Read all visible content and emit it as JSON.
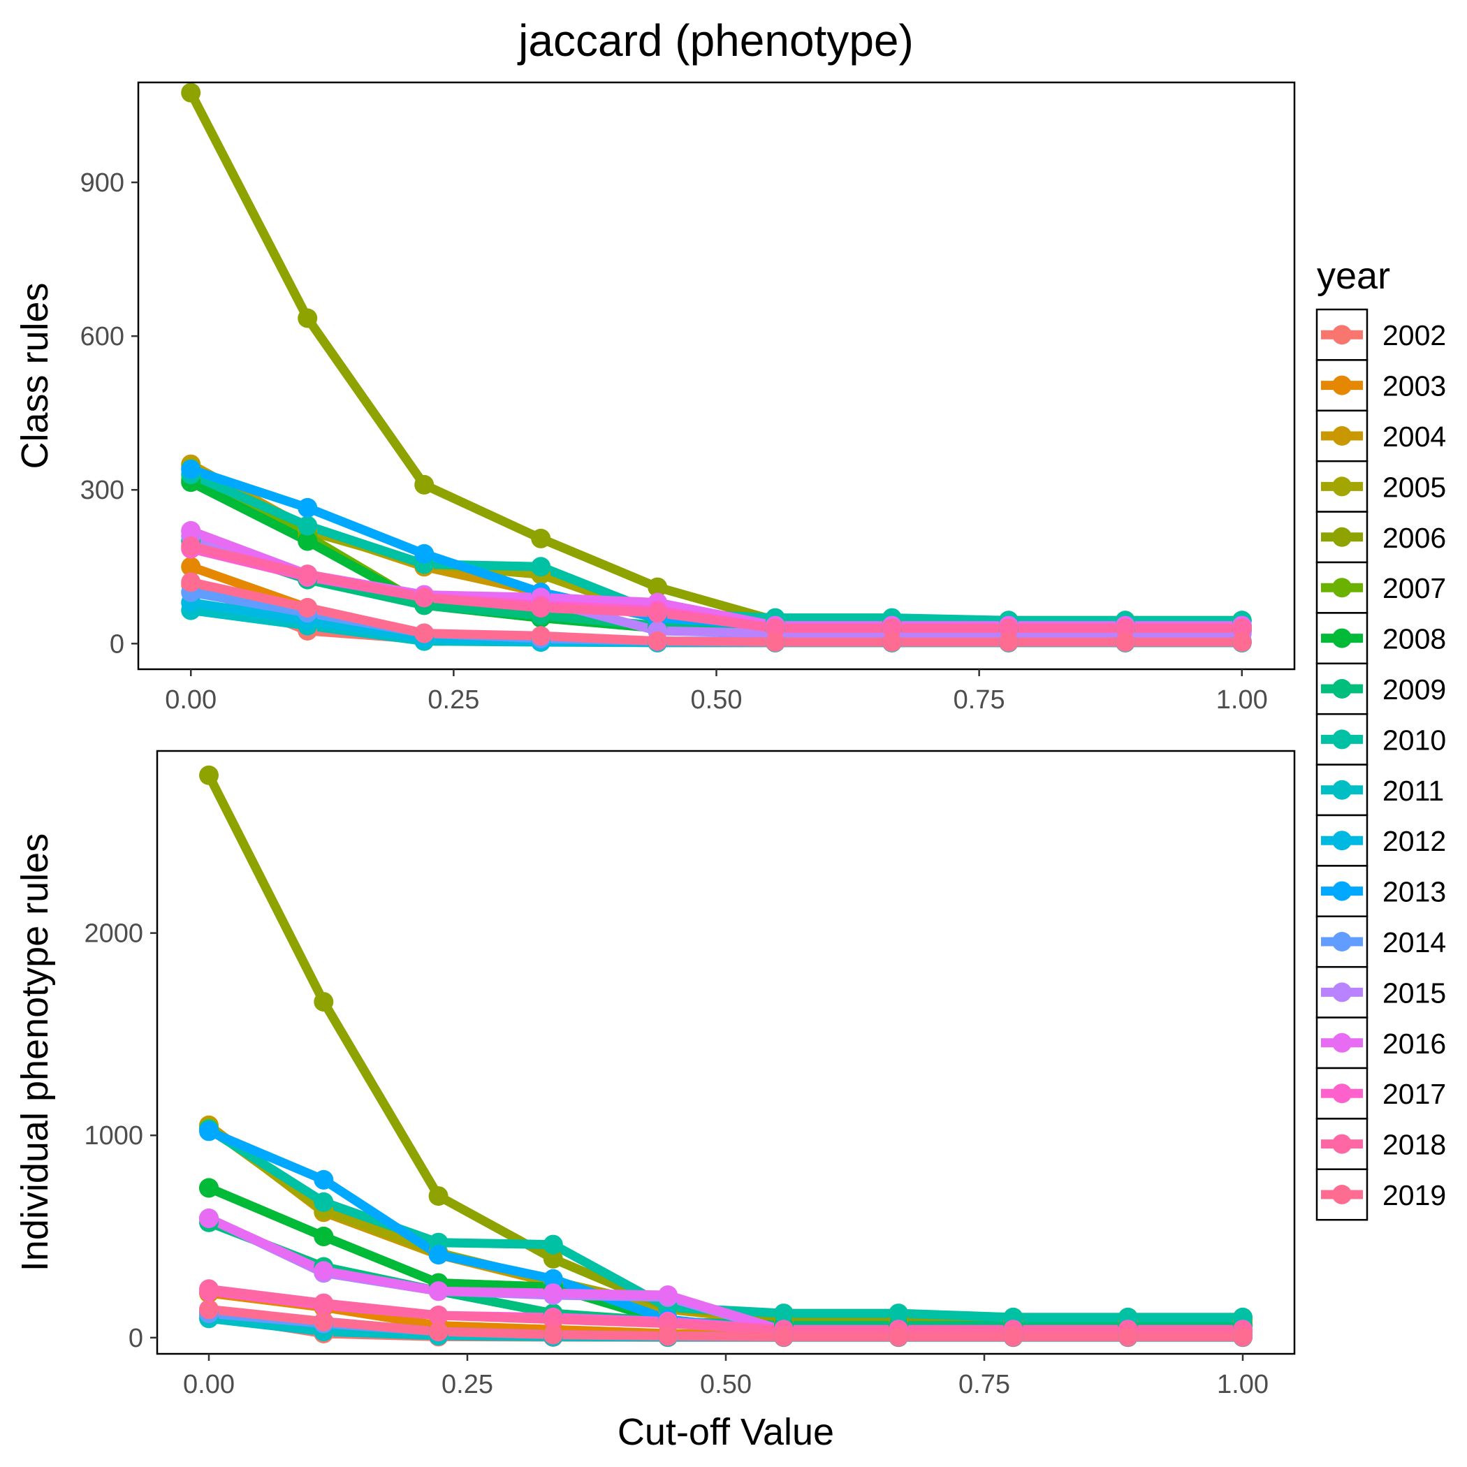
{
  "title": "jaccard (phenotype)",
  "legend": {
    "title": "year",
    "position": "right"
  },
  "colors": {
    "2002": "#F8766D",
    "2003": "#E58700",
    "2004": "#C99800",
    "2005": "#A3A500",
    "2006": "#8FA300",
    "2007": "#6BB100",
    "2008": "#00BA38",
    "2009": "#00BF7D",
    "2010": "#00C1A3",
    "2011": "#00BFC4",
    "2012": "#00B9E3",
    "2013": "#00A9FF",
    "2014": "#619CFF",
    "2015": "#B983FF",
    "2016": "#E76BF3",
    "2017": "#FF61CC",
    "2018": "#FF67A4",
    "2019": "#FF6C91"
  },
  "chart_data": [
    {
      "type": "line",
      "title": "",
      "xlabel": "",
      "ylabel": "Class rules",
      "xlim": [
        -0.05,
        1.05
      ],
      "ylim": [
        -50,
        1095
      ],
      "xticks": [
        0,
        0.25,
        0.5,
        0.75,
        1
      ],
      "xtick_labels": [
        "0.00",
        "0.25",
        "0.50",
        "0.75",
        "1.00"
      ],
      "yticks": [
        0,
        300,
        600,
        900
      ],
      "ytick_labels": [
        "0",
        "300",
        "600",
        "900"
      ],
      "grid": false,
      "x": [
        0,
        0.111,
        0.222,
        0.333,
        0.444,
        0.556,
        0.667,
        0.778,
        0.889,
        1.0
      ],
      "series": [
        {
          "name": "2002",
          "values": [
            115,
            25,
            8,
            5,
            2,
            2,
            2,
            2,
            2,
            2
          ]
        },
        {
          "name": "2003",
          "values": [
            150,
            70,
            20,
            10,
            5,
            3,
            3,
            3,
            3,
            3
          ]
        },
        {
          "name": "2004",
          "values": [
            350,
            225,
            150,
            100,
            50,
            30,
            30,
            30,
            30,
            30
          ]
        },
        {
          "name": "2005",
          "values": [
            345,
            220,
            155,
            135,
            55,
            35,
            35,
            35,
            35,
            35
          ]
        },
        {
          "name": "2006",
          "values": [
            1075,
            635,
            310,
            205,
            110,
            45,
            45,
            45,
            45,
            45
          ]
        },
        {
          "name": "2007",
          "values": [
            320,
            210,
            75,
            55,
            30,
            25,
            25,
            25,
            25,
            25
          ]
        },
        {
          "name": "2008",
          "values": [
            315,
            200,
            75,
            50,
            30,
            25,
            25,
            25,
            25,
            25
          ]
        },
        {
          "name": "2009",
          "values": [
            200,
            125,
            75,
            55,
            35,
            30,
            30,
            30,
            30,
            30
          ]
        },
        {
          "name": "2010",
          "values": [
            330,
            230,
            155,
            150,
            60,
            50,
            50,
            45,
            45,
            45
          ]
        },
        {
          "name": "2011",
          "values": [
            65,
            35,
            5,
            3,
            2,
            2,
            2,
            2,
            2,
            2
          ]
        },
        {
          "name": "2012",
          "values": [
            80,
            45,
            10,
            5,
            3,
            3,
            3,
            3,
            3,
            3
          ]
        },
        {
          "name": "2013",
          "values": [
            340,
            265,
            175,
            100,
            50,
            35,
            35,
            35,
            35,
            35
          ]
        },
        {
          "name": "2014",
          "values": [
            100,
            60,
            20,
            10,
            5,
            5,
            5,
            5,
            5,
            5
          ]
        },
        {
          "name": "2015",
          "values": [
            210,
            135,
            95,
            85,
            25,
            20,
            20,
            20,
            20,
            20
          ]
        },
        {
          "name": "2016",
          "values": [
            220,
            135,
            95,
            90,
            80,
            35,
            35,
            35,
            35,
            35
          ]
        },
        {
          "name": "2017",
          "values": [
            185,
            130,
            90,
            75,
            65,
            30,
            30,
            30,
            30,
            30
          ]
        },
        {
          "name": "2018",
          "values": [
            190,
            135,
            90,
            70,
            60,
            30,
            30,
            30,
            30,
            30
          ]
        },
        {
          "name": "2019",
          "values": [
            120,
            70,
            20,
            15,
            5,
            3,
            3,
            3,
            3,
            3
          ]
        }
      ]
    },
    {
      "type": "line",
      "title": "",
      "xlabel": "Cut-off Value",
      "ylabel": "Individual phenotype rules",
      "xlim": [
        -0.05,
        1.05
      ],
      "ylim": [
        -80,
        2900
      ],
      "xticks": [
        0,
        0.25,
        0.5,
        0.75,
        1
      ],
      "xtick_labels": [
        "0.00",
        "0.25",
        "0.50",
        "0.75",
        "1.00"
      ],
      "yticks": [
        0,
        1000,
        2000
      ],
      "ytick_labels": [
        "0",
        "1000",
        "2000"
      ],
      "grid": false,
      "x": [
        0,
        0.111,
        0.222,
        0.333,
        0.444,
        0.556,
        0.667,
        0.778,
        0.889,
        1.0
      ],
      "series": [
        {
          "name": "2002",
          "values": [
            110,
            20,
            5,
            3,
            2,
            2,
            2,
            2,
            2,
            2
          ]
        },
        {
          "name": "2003",
          "values": [
            220,
            150,
            60,
            40,
            20,
            10,
            10,
            10,
            10,
            10
          ]
        },
        {
          "name": "2004",
          "values": [
            1050,
            620,
            410,
            270,
            140,
            80,
            80,
            80,
            80,
            80
          ]
        },
        {
          "name": "2005",
          "values": [
            1040,
            630,
            420,
            280,
            150,
            90,
            90,
            90,
            90,
            90
          ]
        },
        {
          "name": "2006",
          "values": [
            2780,
            1660,
            700,
            390,
            150,
            100,
            100,
            100,
            100,
            100
          ]
        },
        {
          "name": "2007",
          "values": [
            740,
            500,
            270,
            250,
            80,
            60,
            60,
            60,
            60,
            60
          ]
        },
        {
          "name": "2008",
          "values": [
            740,
            500,
            270,
            250,
            80,
            60,
            60,
            60,
            60,
            60
          ]
        },
        {
          "name": "2009",
          "values": [
            570,
            350,
            230,
            120,
            80,
            60,
            60,
            60,
            60,
            60
          ]
        },
        {
          "name": "2010",
          "values": [
            1030,
            670,
            470,
            460,
            150,
            120,
            120,
            100,
            100,
            100
          ]
        },
        {
          "name": "2011",
          "values": [
            95,
            30,
            10,
            5,
            3,
            3,
            3,
            3,
            3,
            3
          ]
        },
        {
          "name": "2012",
          "values": [
            130,
            80,
            30,
            15,
            8,
            5,
            5,
            5,
            5,
            5
          ]
        },
        {
          "name": "2013",
          "values": [
            1020,
            780,
            410,
            290,
            90,
            30,
            30,
            30,
            30,
            30
          ]
        },
        {
          "name": "2014",
          "values": [
            120,
            70,
            30,
            15,
            8,
            5,
            5,
            5,
            5,
            5
          ]
        },
        {
          "name": "2015",
          "values": [
            590,
            320,
            230,
            210,
            200,
            30,
            30,
            30,
            30,
            30
          ]
        },
        {
          "name": "2016",
          "values": [
            590,
            330,
            230,
            220,
            210,
            35,
            35,
            35,
            35,
            35
          ]
        },
        {
          "name": "2017",
          "values": [
            230,
            160,
            110,
            100,
            80,
            40,
            40,
            40,
            40,
            40
          ]
        },
        {
          "name": "2018",
          "values": [
            240,
            170,
            110,
            90,
            70,
            35,
            35,
            35,
            35,
            35
          ]
        },
        {
          "name": "2019",
          "values": [
            140,
            80,
            30,
            15,
            8,
            5,
            5,
            5,
            5,
            5
          ]
        }
      ]
    }
  ]
}
